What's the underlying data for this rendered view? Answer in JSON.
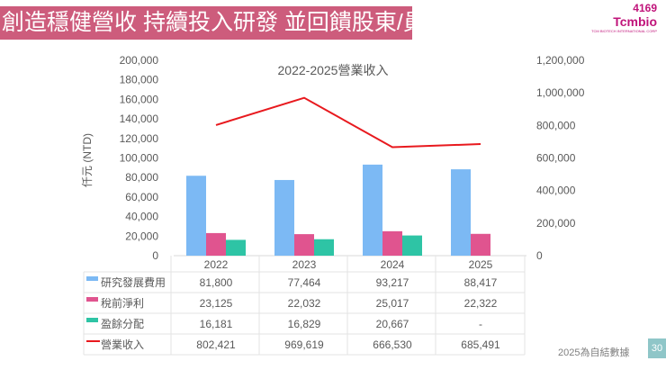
{
  "header": {
    "title": "創造穩健營收 持續投入研發 並回饋股東/員工"
  },
  "logo": {
    "code": "4169",
    "brand": "Tcmbio",
    "sub": "TCM BIOTECH INTERNATIONAL CORP"
  },
  "chart_data": {
    "type": "bar+line",
    "title": "2022-2025營業收入",
    "ylabel": "仟元 (NTD)",
    "categories": [
      "2022",
      "2023",
      "2024",
      "2025"
    ],
    "ylim": [
      0,
      200000
    ],
    "y2lim": [
      0,
      1200000
    ],
    "yticks": [
      "0",
      "20,000",
      "40,000",
      "60,000",
      "80,000",
      "100,000",
      "120,000",
      "140,000",
      "160,000",
      "180,000",
      "200,000"
    ],
    "y2ticks": [
      "0",
      "200,000",
      "400,000",
      "600,000",
      "800,000",
      "1,000,000",
      "1,200,000"
    ],
    "series": [
      {
        "name": "研究發展費用",
        "type": "bar",
        "axis": "left",
        "color": "#7cb9f4",
        "values": [
          81800,
          77464,
          93217,
          88417
        ],
        "labels": [
          "81,800",
          "77,464",
          "93,217",
          "88,417"
        ]
      },
      {
        "name": "稅前淨利",
        "type": "bar",
        "axis": "left",
        "color": "#e0548f",
        "values": [
          23125,
          22032,
          25017,
          22322
        ],
        "labels": [
          "23,125",
          "22,032",
          "25,017",
          "22,322"
        ]
      },
      {
        "name": "盈餘分配",
        "type": "bar",
        "axis": "left",
        "color": "#2ec4a5",
        "values": [
          16181,
          16829,
          20667,
          null
        ],
        "labels": [
          "16,181",
          "16,829",
          "20,667",
          "-"
        ]
      },
      {
        "name": "營業收入",
        "type": "line",
        "axis": "right",
        "color": "#e8191e",
        "values": [
          802421,
          969619,
          666530,
          685491
        ],
        "labels": [
          "802,421",
          "969,619",
          "666,530",
          "685,491"
        ]
      }
    ]
  },
  "footer": {
    "note": "2025為自結數據",
    "page": "30"
  }
}
